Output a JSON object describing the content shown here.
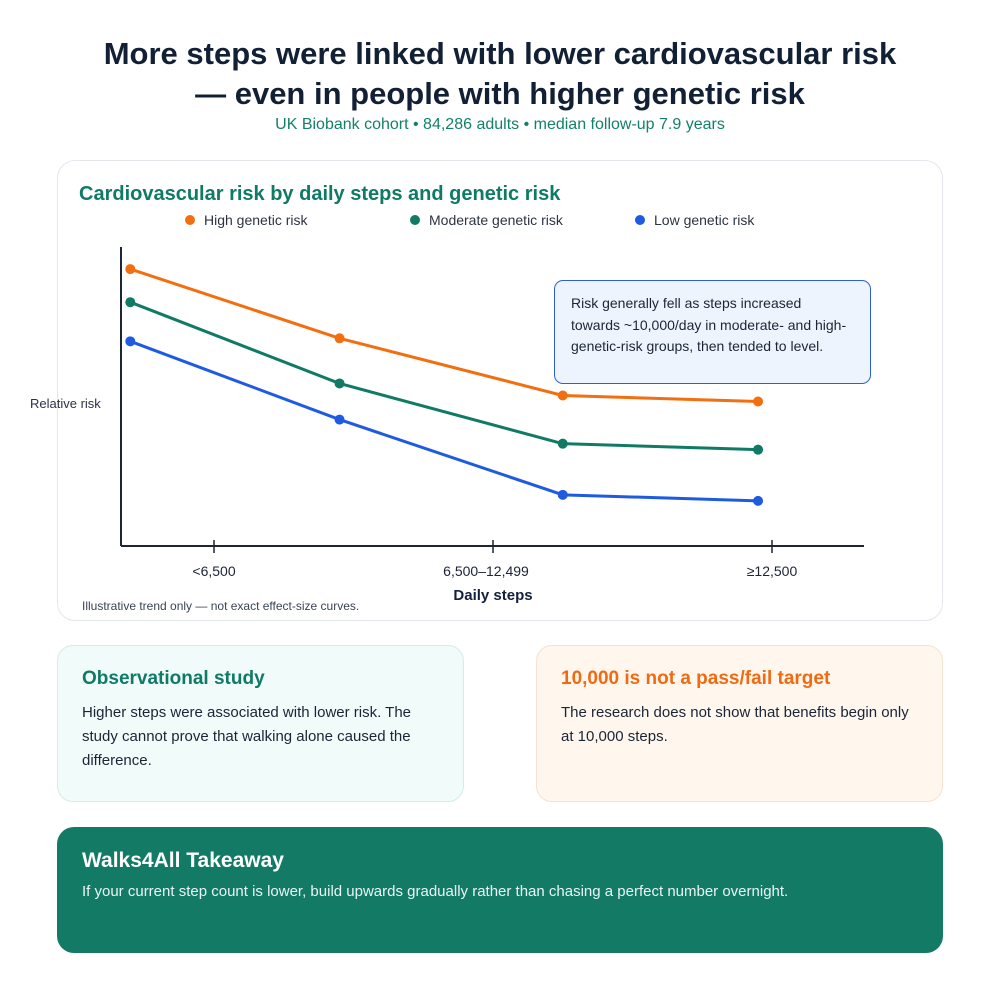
{
  "header": {
    "title_line1": "More steps were linked with lower cardiovascular risk",
    "title_line2": "— even in people with higher genetic risk",
    "subtitle": "UK Biobank cohort • 84,286 adults • median follow-up 7.9 years"
  },
  "chart_data": {
    "type": "line",
    "title": "Cardiovascular risk by daily steps and genetic risk",
    "xlabel": "Daily steps",
    "ylabel": "Relative risk",
    "tick_labels": [
      "<6,500",
      "6,500–12,499",
      "≥12,500"
    ],
    "tick_positions": [
      0,
      1,
      2
    ],
    "x": [
      -0.3,
      0.45,
      1.25,
      1.95
    ],
    "ylim": [
      0,
      1
    ],
    "series": [
      {
        "name": "High genetic risk",
        "color": "#f26f11",
        "values": [
          0.92,
          0.69,
          0.5,
          0.48
        ]
      },
      {
        "name": "Moderate genetic risk",
        "color": "#117a64",
        "values": [
          0.81,
          0.54,
          0.34,
          0.32
        ]
      },
      {
        "name": "Low genetic risk",
        "color": "#1f5be0",
        "values": [
          0.68,
          0.42,
          0.17,
          0.15
        ]
      }
    ],
    "annotation": "Risk generally fell as steps increased towards ~10,000/day in moderate- and high-genetic-risk groups, then tended to level.",
    "note": "Illustrative trend only — not exact effect-size curves.",
    "grid": false,
    "legend": "top"
  },
  "cards": {
    "observational": {
      "title": "Observational study",
      "body": "Higher steps were associated with lower risk. The study cannot prove that walking alone caused the difference."
    },
    "target": {
      "title": "10,000 is not a pass/fail target",
      "body": "The research does not show that benefits begin only at 10,000 steps."
    }
  },
  "takeaway": {
    "title": "Walks4All Takeaway",
    "body": "If your current step count is lower, build upwards gradually rather than chasing a perfect number overnight."
  }
}
